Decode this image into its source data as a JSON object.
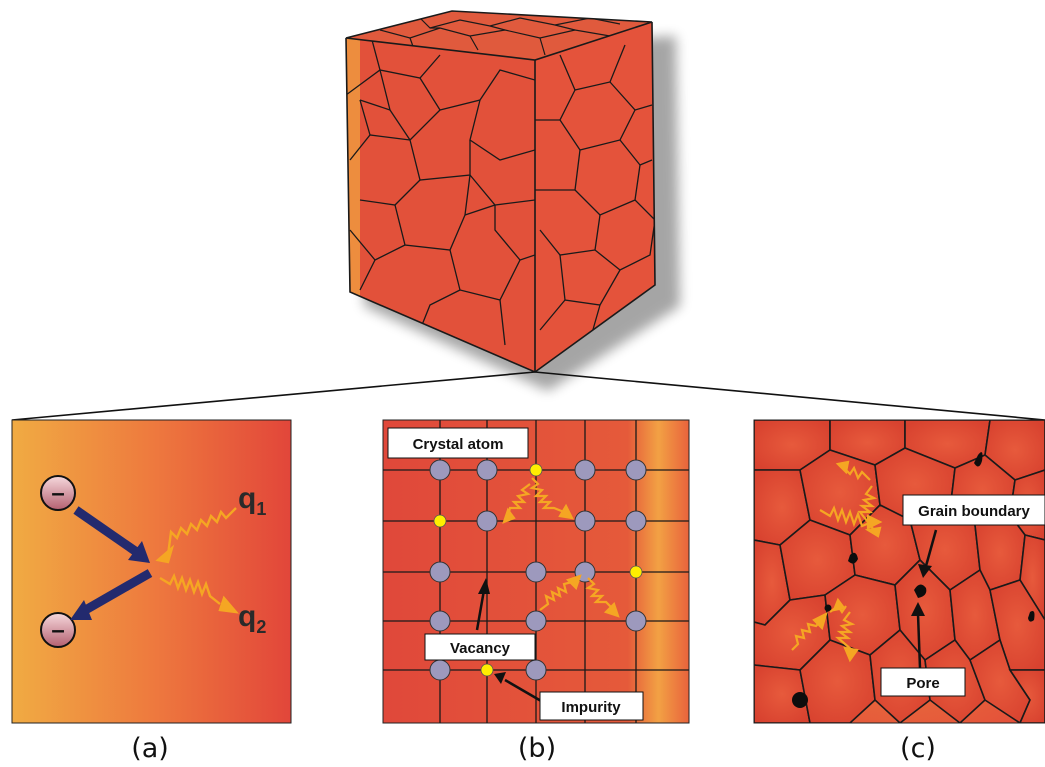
{
  "figure": {
    "panels": [
      {
        "id": "a",
        "caption": "(a)",
        "charges": [
          "–",
          "–"
        ],
        "phonon_labels": {
          "q1_base": "q",
          "q1_sub": "1",
          "q2_base": "q",
          "q2_sub": "2"
        }
      },
      {
        "id": "b",
        "caption": "(b)",
        "labels": {
          "crystal_atom": "Crystal atom",
          "vacancy": "Vacancy",
          "impurity": "Impurity"
        }
      },
      {
        "id": "c",
        "caption": "(c)",
        "labels": {
          "grain_boundary": "Grain boundary",
          "pore": "Pore"
        }
      }
    ]
  },
  "colors": {
    "grain_red": "#e2513a",
    "grain_line": "#1a1a1a",
    "warm_yellow": "#f2a640",
    "phonon_orange": "#f5a623",
    "arrow_navy": "#232a6e",
    "atom_lavender": "#9d99bd",
    "impurity_yellow": "#ffee00"
  },
  "icons": [
    "electron-icon",
    "phonon-wave-icon",
    "scatter-arrow-icon",
    "atom-icon",
    "impurity-icon",
    "pore-icon"
  ]
}
